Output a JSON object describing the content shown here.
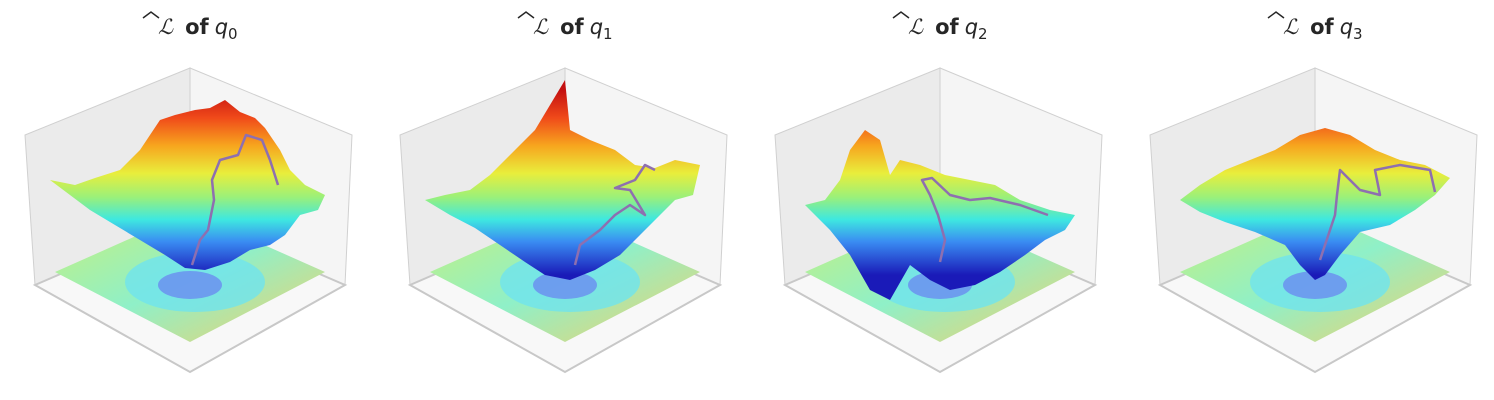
{
  "panels": [
    {
      "loss": "ℒ",
      "of": "of",
      "var": "q",
      "index": "0"
    },
    {
      "loss": "ℒ",
      "of": "of",
      "var": "q",
      "index": "1"
    },
    {
      "loss": "ℒ",
      "of": "of",
      "var": "q",
      "index": "2"
    },
    {
      "loss": "ℒ",
      "of": "of",
      "var": "q",
      "index": "3"
    }
  ]
}
